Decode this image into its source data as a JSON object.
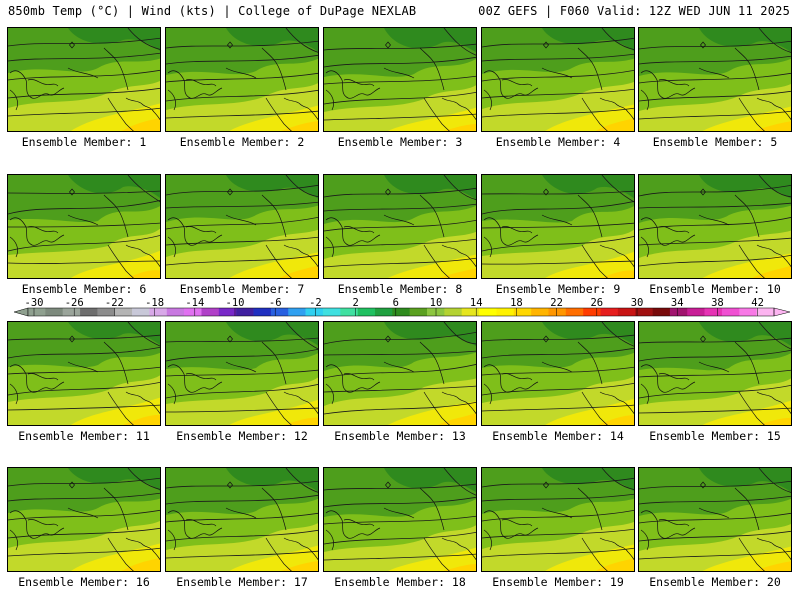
{
  "header": {
    "left_title": "850mb Temp (°C) | Wind (kts) | College of DuPage NEXLAB",
    "right_title": "00Z GEFS | F060 Valid: 12Z WED JUN 11 2025"
  },
  "panels": [
    {
      "label": "Ensemble Member: 1"
    },
    {
      "label": "Ensemble Member: 2"
    },
    {
      "label": "Ensemble Member: 3"
    },
    {
      "label": "Ensemble Member: 4"
    },
    {
      "label": "Ensemble Member: 5"
    },
    {
      "label": "Ensemble Member: 6"
    },
    {
      "label": "Ensemble Member: 7"
    },
    {
      "label": "Ensemble Member: 8"
    },
    {
      "label": "Ensemble Member: 9"
    },
    {
      "label": "Ensemble Member: 10"
    },
    {
      "label": "Ensemble Member: 11"
    },
    {
      "label": "Ensemble Member: 12"
    },
    {
      "label": "Ensemble Member: 13"
    },
    {
      "label": "Ensemble Member: 14"
    },
    {
      "label": "Ensemble Member: 15"
    },
    {
      "label": "Ensemble Member: 16"
    },
    {
      "label": "Ensemble Member: 17"
    },
    {
      "label": "Ensemble Member: 18"
    },
    {
      "label": "Ensemble Member: 19"
    },
    {
      "label": "Ensemble Member: 20"
    }
  ],
  "colorbar": {
    "tick_labels": [
      "-30",
      "-26",
      "-22",
      "-18",
      "-14",
      "-10",
      "-6",
      "-2",
      "2",
      "6",
      "10",
      "14",
      "18",
      "22",
      "26",
      "30",
      "34",
      "38",
      "42"
    ],
    "colors": [
      "#8fa08f",
      "#7d8a7d",
      "#9aa49a",
      "#6e6e6e",
      "#8c8c8c",
      "#b4b4b4",
      "#c8c8d8",
      "#d8a8e8",
      "#c878e0",
      "#e070f0",
      "#b040c8",
      "#7828c8",
      "#4020a0",
      "#2030c0",
      "#2860e0",
      "#30a0f0",
      "#30d0f0",
      "#40e0e0",
      "#40e0a0",
      "#20c060",
      "#20a040",
      "#2e8b1e",
      "#5aa020",
      "#8cc63f",
      "#b4d232",
      "#e6e61e",
      "#ffff00",
      "#fff200",
      "#ffd700",
      "#ffb400",
      "#ff9600",
      "#ff6e00",
      "#ff3c00",
      "#e61e1e",
      "#c81414",
      "#a01010",
      "#780a0a",
      "#a0146e",
      "#c81e96",
      "#e632b4",
      "#f050d2",
      "#f878e6",
      "#fcb4f0"
    ]
  },
  "colors": {
    "dark_green": "#2e8b1e",
    "mid_green": "#5aa020",
    "light_green": "#8cc63f",
    "yellow_green": "#c0d828",
    "yellow": "#ffff00",
    "gold": "#ffd700"
  }
}
